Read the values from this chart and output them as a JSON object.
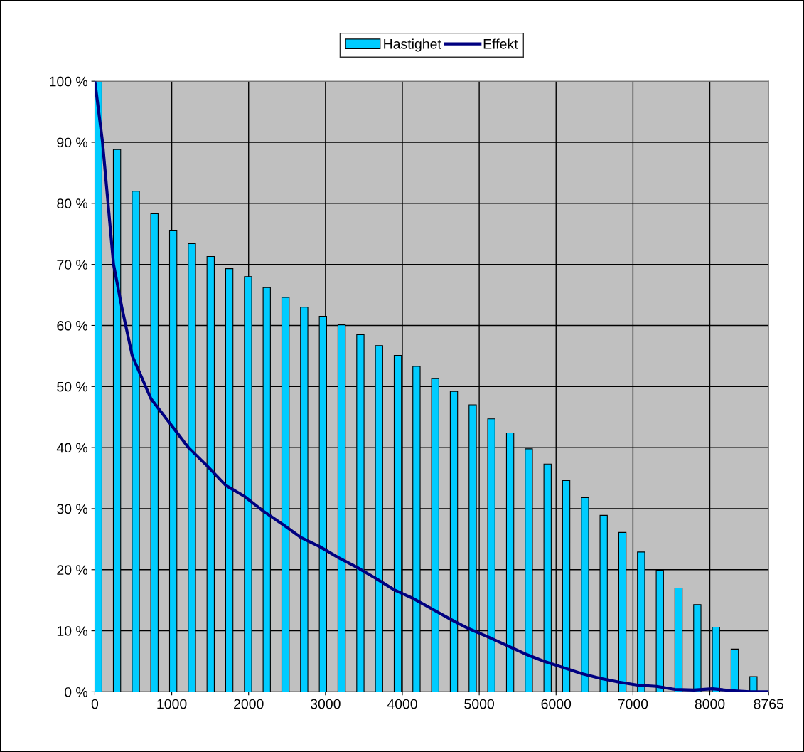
{
  "chart_data": {
    "type": "bar",
    "legend": "top",
    "grid": true,
    "x": [
      45,
      288,
      532,
      775,
      1019,
      1262,
      1506,
      1749,
      1993,
      2236,
      2480,
      2723,
      2967,
      3210,
      3454,
      3697,
      3941,
      4184,
      4428,
      4671,
      4915,
      5158,
      5402,
      5645,
      5889,
      6132,
      6376,
      6619,
      6863,
      7106,
      7350,
      7593,
      7837,
      8080,
      8324,
      8567
    ],
    "xlim": [
      0,
      8765
    ],
    "xticks": [
      0,
      1000,
      2000,
      3000,
      4000,
      5000,
      6000,
      7000,
      8000,
      8765
    ],
    "ylim": [
      0,
      100
    ],
    "yticks": [
      {
        "value": 0,
        "label": "0 %"
      },
      {
        "value": 10,
        "label": "10 %"
      },
      {
        "value": 20,
        "label": "20 %"
      },
      {
        "value": 30,
        "label": "30 %"
      },
      {
        "value": 40,
        "label": "40 %"
      },
      {
        "value": 50,
        "label": "50 %"
      },
      {
        "value": 60,
        "label": "60 %"
      },
      {
        "value": 70,
        "label": "70 %"
      },
      {
        "value": 80,
        "label": "80 %"
      },
      {
        "value": 90,
        "label": "90 %"
      },
      {
        "value": 100,
        "label": "100 %"
      }
    ],
    "series": [
      {
        "name": "Hastighet",
        "color": "#00ccff",
        "values": [
          100,
          88.8,
          82,
          78.3,
          75.6,
          73.4,
          71.3,
          69.3,
          68,
          66.2,
          64.6,
          63,
          61.5,
          60.1,
          58.5,
          56.7,
          55.1,
          53.3,
          51.3,
          49.2,
          47,
          44.7,
          42.4,
          39.8,
          37.3,
          34.6,
          31.8,
          28.9,
          26.1,
          22.9,
          19.9,
          17,
          14.3,
          10.6,
          7,
          2.5
        ]
      },
      {
        "name": "Effekt",
        "type": "line",
        "color": "#000080",
        "x": [
          0,
          100,
          243,
          350,
          487,
          730,
          974,
          1217,
          1461,
          1704,
          1948,
          2191,
          2435,
          2678,
          2922,
          3165,
          3409,
          3652,
          3896,
          4139,
          4383,
          4626,
          4870,
          5113,
          5357,
          5600,
          5844,
          6087,
          6331,
          6574,
          6818,
          7061,
          7305,
          7548,
          7792,
          8035,
          8279,
          8522,
          8765
        ],
        "values": [
          100,
          90,
          70,
          63,
          55,
          48,
          44,
          40,
          37,
          33.8,
          32,
          29.6,
          27.5,
          25.3,
          23.8,
          22,
          20.4,
          18.6,
          16.7,
          15.3,
          13.6,
          11.9,
          10.3,
          9,
          7.6,
          6.2,
          5,
          4,
          3,
          2.2,
          1.6,
          1.1,
          0.9,
          0.4,
          0.3,
          0.5,
          0.2,
          0,
          0
        ]
      }
    ]
  }
}
